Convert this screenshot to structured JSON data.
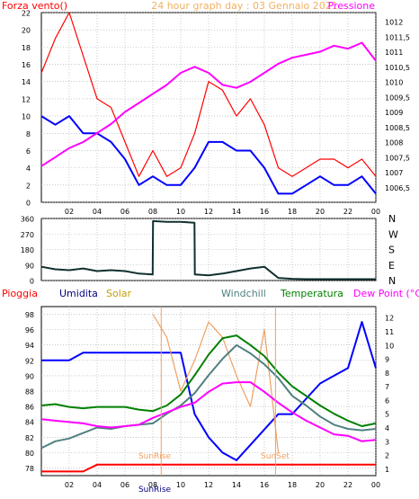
{
  "colors": {
    "bg": "#ffffff",
    "plot_bg": "#ffffff",
    "grid": "#a8a8a8",
    "wind_gust": "#ff0000",
    "wind_avg": "#0000ff",
    "pressure": "#ff00ff",
    "wind_dir": "#103030",
    "rain": "#ff0000",
    "humidity": "#0000ff",
    "solar": "#f0a060",
    "windchill": "#508080",
    "temperature": "#008000",
    "dewpoint": "#ff00ff",
    "label_humidity": "#000080",
    "label_solar": "#c0a000",
    "label_windchill": "#508080",
    "label_temperature": "#008000",
    "label_rain": "#ff0000",
    "label_dewpoint": "#ff00ff"
  },
  "header": {
    "title": "24 hour graph day : 03 Gennaio 2021",
    "left_label": "Forza vento()",
    "right_label": "Pressione"
  },
  "x_ticks": [
    "02",
    "04",
    "06",
    "08",
    "10",
    "12",
    "14",
    "16",
    "18",
    "20",
    "22",
    "00"
  ],
  "chart_data": [
    {
      "type": "line",
      "title": "24 hour graph day : 03 Gennaio 2021",
      "ylabel": "Forza vento()",
      "y2label": "Pressione",
      "ylim": [
        0,
        22
      ],
      "yticks": [
        "0",
        "2",
        "4",
        "6",
        "8",
        "10",
        "12",
        "14",
        "16",
        "18",
        "20",
        "22"
      ],
      "y2lim": [
        1006,
        1012.3
      ],
      "y2ticks": [
        "1006,5",
        "1007",
        "1007,5",
        "1008",
        "1008,5",
        "1009",
        "1009,5",
        "1010",
        "1010,5",
        "1011",
        "1011,5",
        "1012"
      ],
      "x": [
        0,
        1,
        2,
        3,
        4,
        5,
        6,
        7,
        8,
        9,
        10,
        11,
        12,
        13,
        14,
        15,
        16,
        17,
        18,
        19,
        20,
        21,
        22,
        23,
        24
      ],
      "series": [
        {
          "key": "gust",
          "values": [
            15,
            19,
            22,
            17,
            12,
            11,
            7,
            3,
            6,
            3,
            4,
            8,
            14,
            13,
            10,
            12,
            9,
            4,
            3,
            4,
            5,
            5,
            4,
            5,
            3
          ]
        },
        {
          "key": "avg",
          "values": [
            10,
            9,
            10,
            8,
            8,
            7,
            5,
            2,
            3,
            2,
            2,
            4,
            7,
            7,
            6,
            6,
            4,
            1,
            1,
            2,
            3,
            2,
            2,
            3,
            1
          ]
        },
        {
          "key": "pressure",
          "axis": "y2",
          "values": [
            1007.2,
            1007.5,
            1007.8,
            1008.0,
            1008.3,
            1008.6,
            1009.0,
            1009.3,
            1009.6,
            1009.9,
            1010.3,
            1010.5,
            1010.3,
            1009.9,
            1009.8,
            1010.0,
            1010.3,
            1010.6,
            1010.8,
            1010.9,
            1011.0,
            1011.2,
            1011.1,
            1011.3,
            1010.7
          ]
        }
      ]
    },
    {
      "type": "line",
      "ylim": [
        0,
        360
      ],
      "yticks": [
        "0",
        "90",
        "180",
        "270",
        "360"
      ],
      "y2ticks": [
        "N",
        "E",
        "S",
        "W",
        "N"
      ],
      "x": [
        0,
        1,
        2,
        3,
        4,
        5,
        6,
        7,
        7.99,
        8.01,
        9,
        10,
        10.99,
        11.01,
        12,
        13,
        14,
        15,
        16,
        17,
        18,
        19,
        20,
        21,
        22,
        23,
        24
      ],
      "series": [
        {
          "key": "direction",
          "values": [
            80,
            65,
            60,
            70,
            55,
            60,
            55,
            40,
            35,
            345,
            340,
            340,
            335,
            35,
            30,
            40,
            55,
            70,
            80,
            15,
            10,
            8,
            8,
            8,
            8,
            8,
            8
          ]
        }
      ]
    },
    {
      "type": "line",
      "ylim": [
        77,
        99
      ],
      "yticks": [
        "78",
        "80",
        "82",
        "84",
        "86",
        "88",
        "90",
        "92",
        "94",
        "96",
        "98"
      ],
      "y2lim": [
        0.5,
        12.8
      ],
      "y2ticks": [
        "1",
        "2",
        "3",
        "4",
        "5",
        "6",
        "7",
        "8",
        "9",
        "10",
        "11",
        "12"
      ],
      "legend": [
        "Pioggia",
        "Umidita",
        "Solar",
        "Windchill",
        "Temperatura",
        "Dew Point (°C)"
      ],
      "annotations": [
        "SunRise",
        "SunSet"
      ],
      "x": [
        0,
        1,
        2,
        3,
        4,
        5,
        6,
        7,
        8,
        9,
        10,
        11,
        12,
        13,
        14,
        15,
        16,
        17,
        18,
        19,
        20,
        21,
        22,
        23,
        24
      ],
      "series": [
        {
          "key": "rain",
          "axis": "y2",
          "values": [
            0.8,
            0.8,
            0.8,
            0.8,
            1.3,
            1.3,
            1.3,
            1.3,
            1.3,
            1.3,
            1.3,
            1.3,
            1.3,
            1.3,
            1.3,
            1.3,
            1.3,
            1.3,
            1.3,
            1.3,
            1.3,
            1.3,
            1.3,
            1.3,
            1.3
          ]
        },
        {
          "key": "humidity",
          "values": [
            92,
            92,
            92,
            93,
            93,
            93,
            93,
            93,
            93,
            93,
            93,
            85,
            82,
            80,
            79,
            81,
            83,
            85,
            85,
            87,
            89,
            90,
            91,
            97,
            91
          ]
        },
        {
          "key": "solar",
          "values": [
            null,
            null,
            null,
            null,
            null,
            null,
            null,
            null,
            98,
            95,
            88,
            92,
            97,
            95,
            90,
            86,
            96,
            80,
            null,
            null,
            null,
            null,
            null,
            null,
            null
          ]
        },
        {
          "key": "windchill",
          "axis": "y2",
          "values": [
            2.5,
            3.0,
            3.2,
            3.6,
            4.0,
            3.9,
            4.1,
            4.2,
            4.3,
            5.0,
            5.6,
            6.5,
            7.8,
            9.0,
            10.0,
            9.4,
            8.6,
            7.6,
            6.3,
            5.6,
            4.8,
            4.2,
            3.9,
            3.8,
            3.9
          ]
        },
        {
          "key": "temperature",
          "axis": "y2",
          "values": [
            5.6,
            5.7,
            5.5,
            5.4,
            5.5,
            5.5,
            5.5,
            5.3,
            5.2,
            5.6,
            6.4,
            7.8,
            9.3,
            10.5,
            10.7,
            10.0,
            9.2,
            8.0,
            7.0,
            6.3,
            5.6,
            5.0,
            4.5,
            4.1,
            4.3
          ]
        },
        {
          "key": "dewpoint",
          "axis": "y2",
          "values": [
            4.6,
            4.5,
            4.4,
            4.3,
            4.1,
            4.0,
            4.1,
            4.2,
            4.7,
            5.1,
            5.5,
            5.8,
            6.6,
            7.2,
            7.3,
            7.3,
            6.6,
            5.8,
            5.1,
            4.5,
            4.0,
            3.5,
            3.4,
            3.0,
            3.1
          ]
        }
      ]
    }
  ]
}
